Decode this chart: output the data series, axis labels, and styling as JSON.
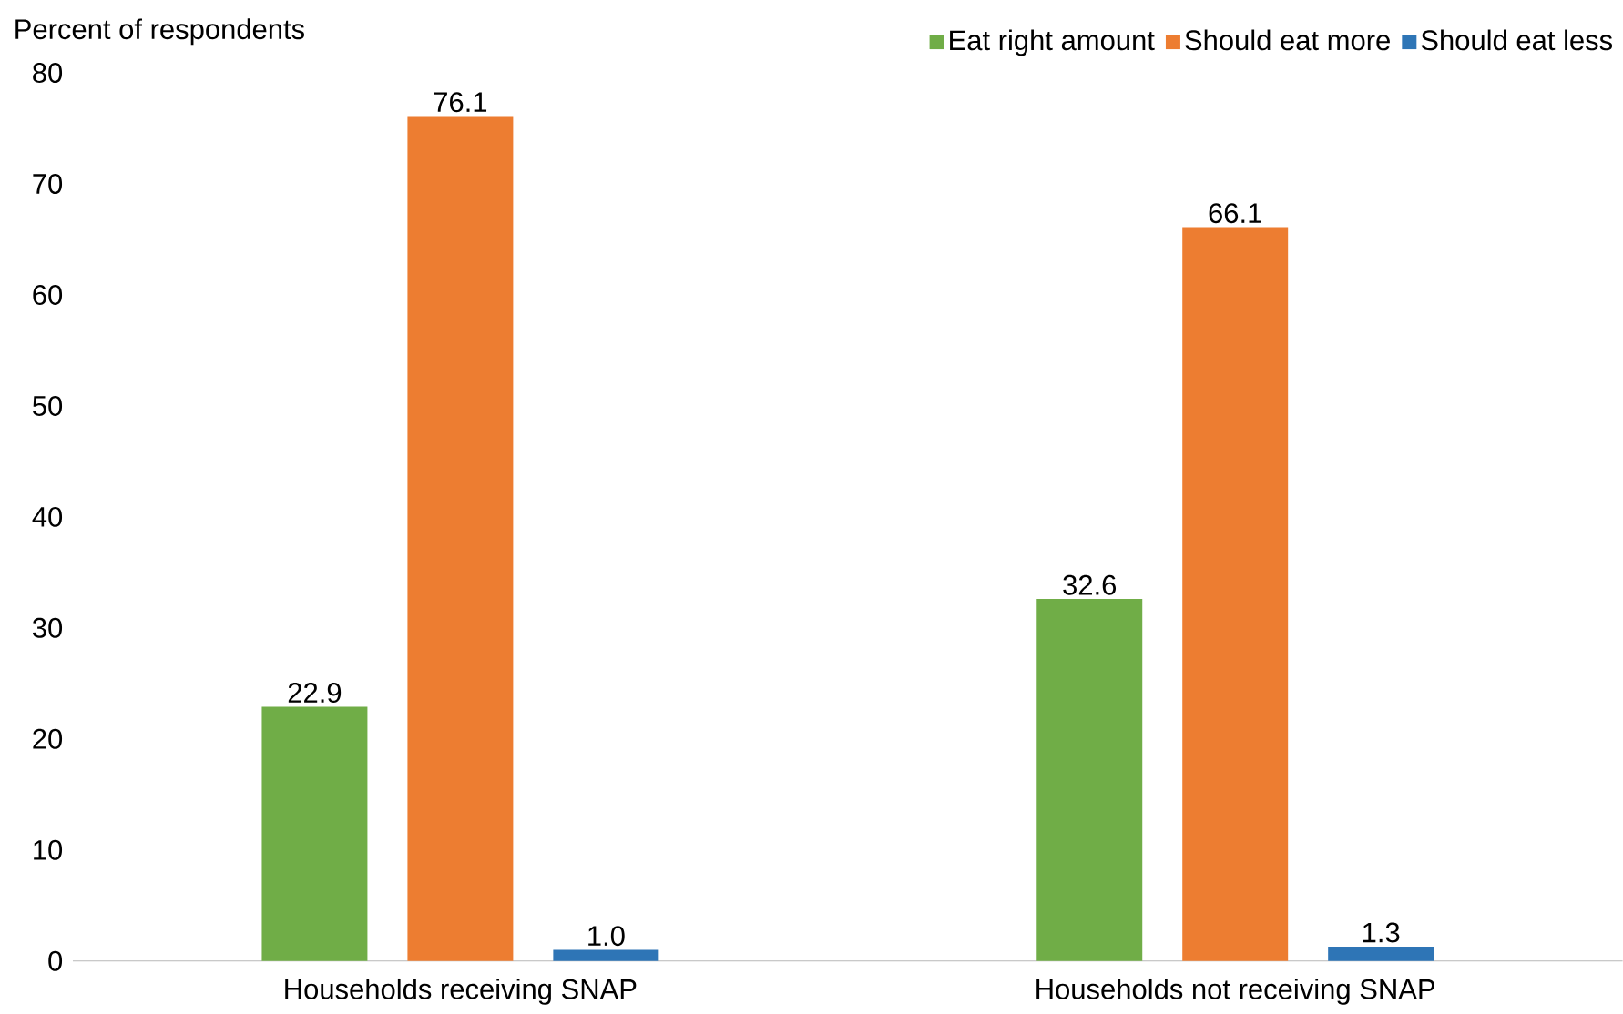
{
  "chart_data": {
    "type": "bar",
    "ylabel": "Percent of respondents",
    "categories": [
      "Households receiving SNAP",
      "Households not receiving SNAP"
    ],
    "series": [
      {
        "name": "Eat right amount",
        "color": "#70ad47",
        "values": [
          22.9,
          32.6
        ],
        "value_labels": [
          "22.9",
          "32.6"
        ]
      },
      {
        "name": "Should eat more",
        "color": "#ed7d31",
        "values": [
          76.1,
          66.1
        ],
        "value_labels": [
          "76.1",
          "66.1"
        ]
      },
      {
        "name": "Should eat less",
        "color": "#2e75b6",
        "values": [
          1.0,
          1.3
        ],
        "value_labels": [
          "1.0",
          "1.3"
        ]
      }
    ],
    "ylim": [
      0,
      80
    ],
    "yticks": [
      0,
      10,
      20,
      30,
      40,
      50,
      60,
      70,
      80
    ],
    "grid": false,
    "legend": "top right"
  }
}
